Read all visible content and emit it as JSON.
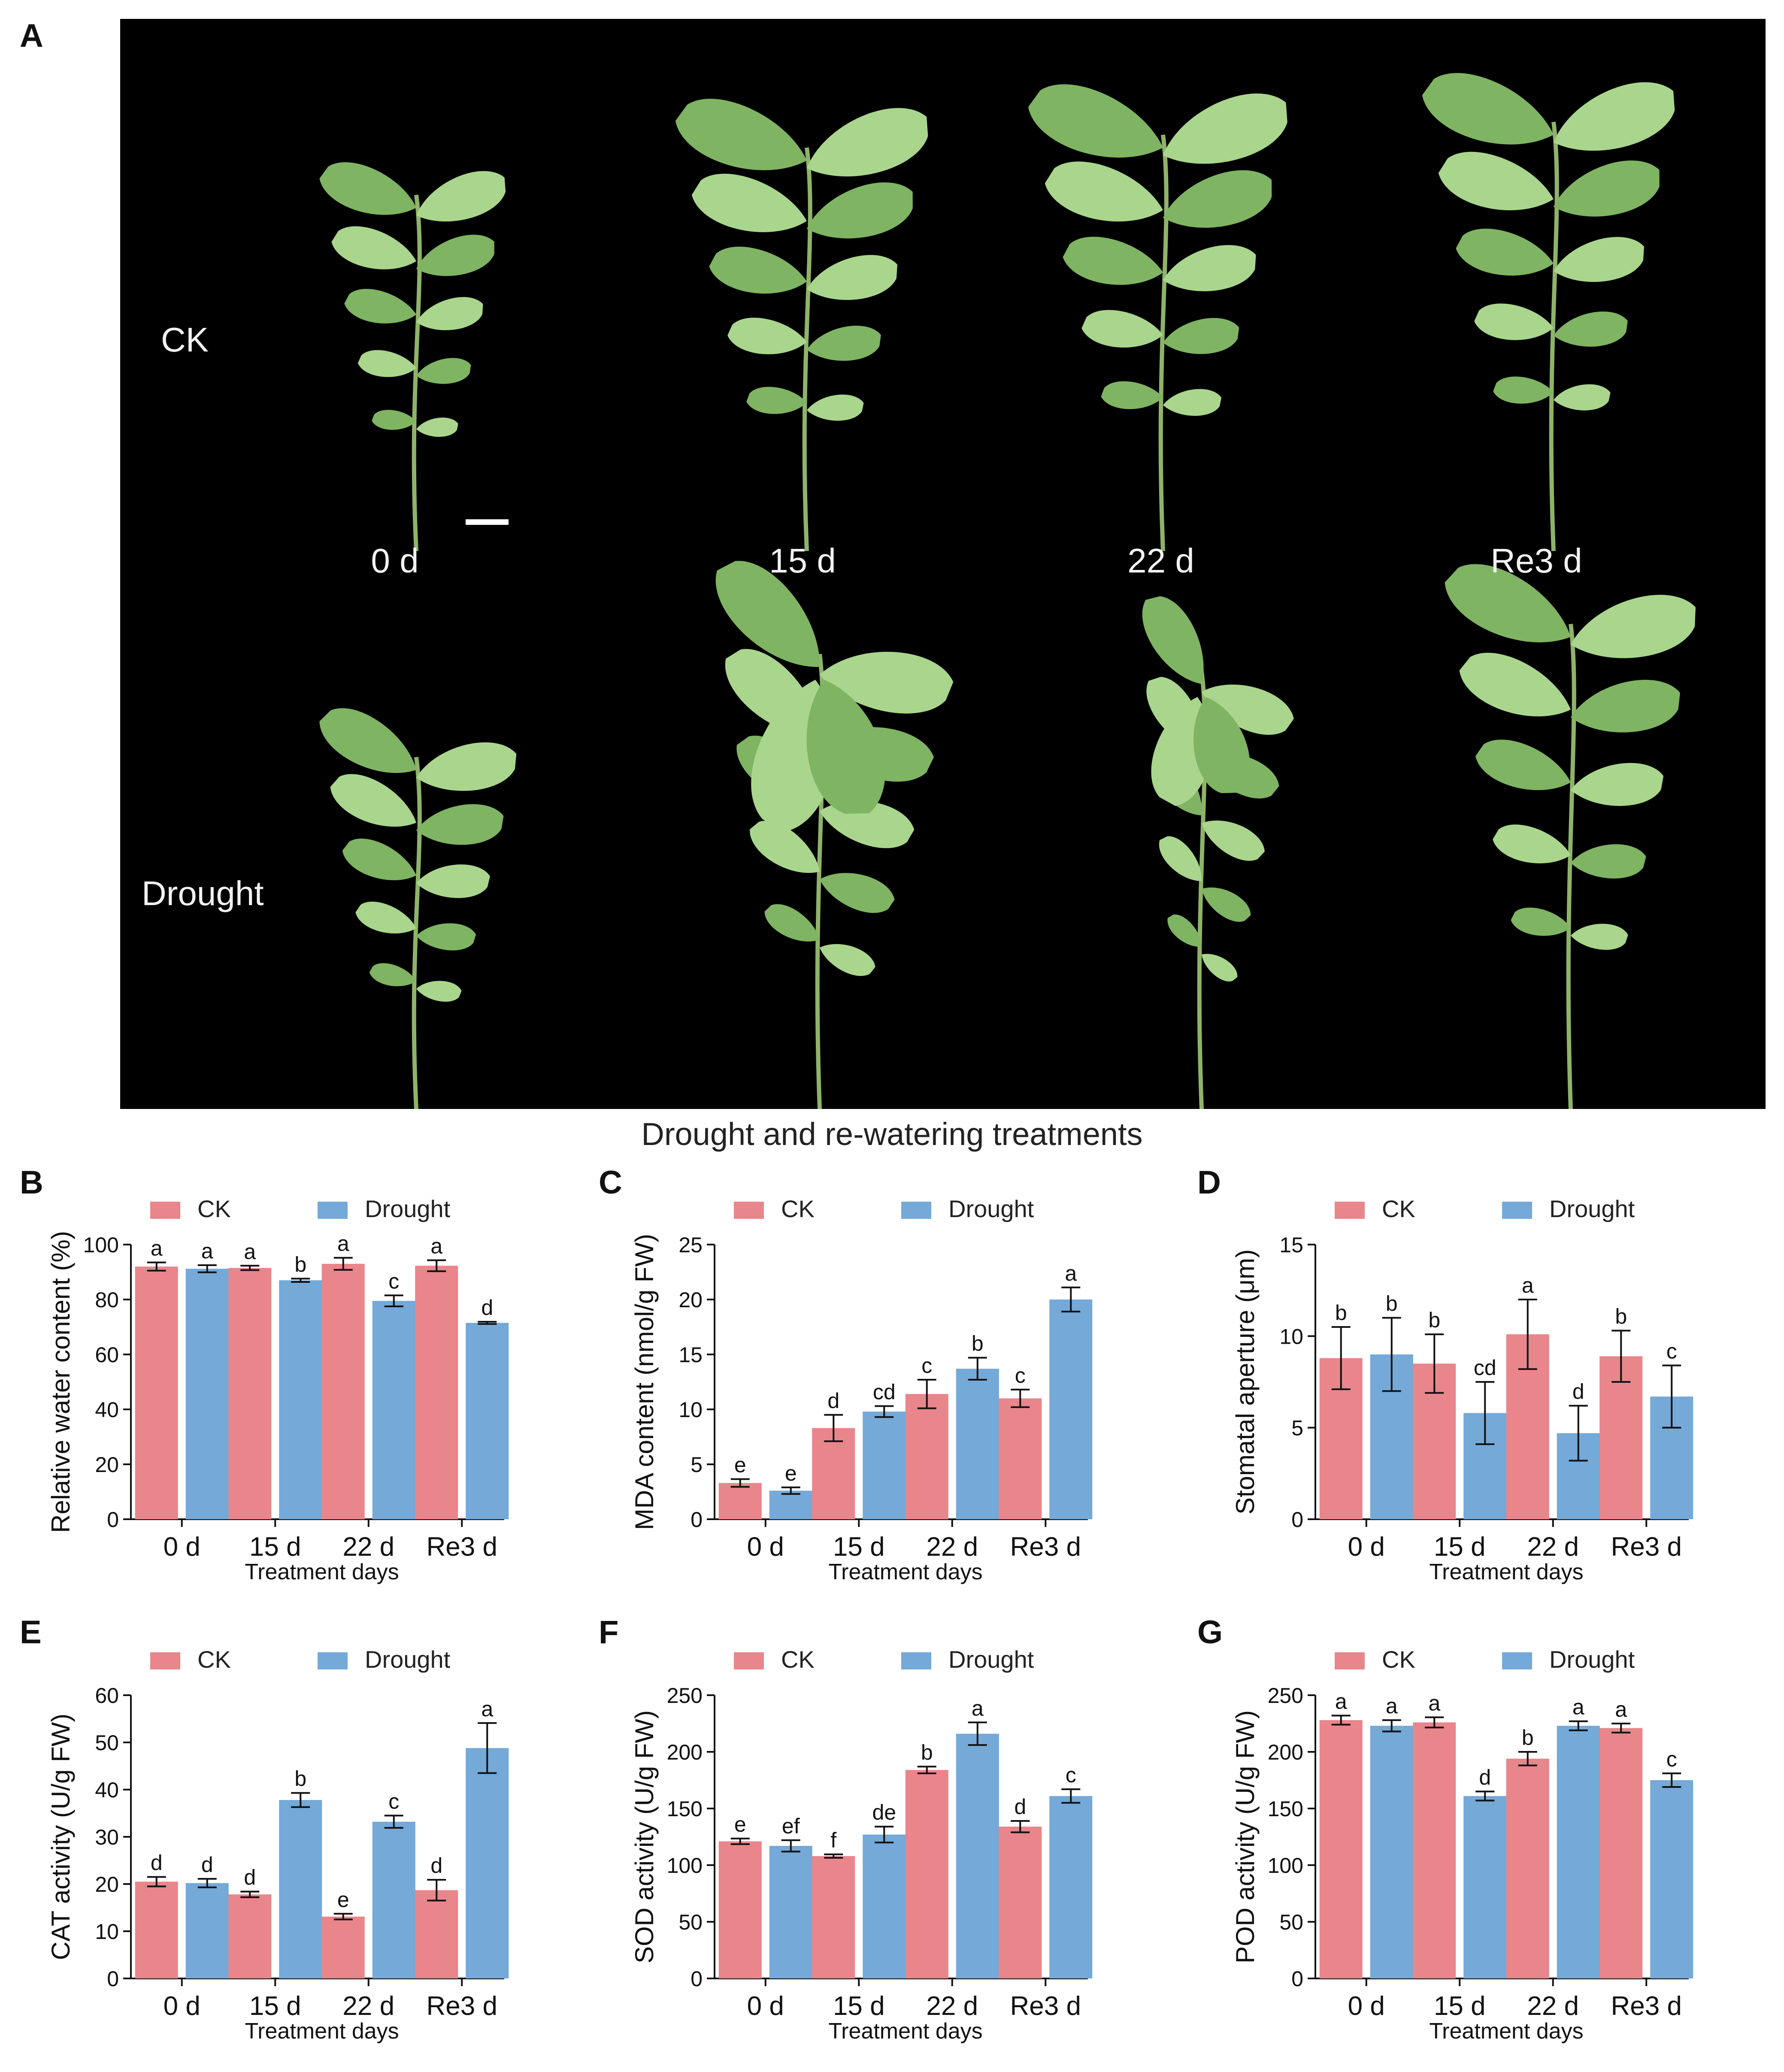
{
  "figure": {
    "panel_a": {
      "letter": "A",
      "row_labels": [
        "CK",
        "Drought"
      ],
      "column_labels": [
        "0 d",
        "15 d",
        "22 d",
        "Re3 d"
      ],
      "caption": "Drought and re-watering treatments",
      "colors": {
        "background": "#000000",
        "leaf": "#a9d68c",
        "leaf_dark": "#7fb462",
        "stem": "#8fb36a"
      }
    },
    "series_colors": {
      "CK": "#e8868b",
      "Drought": "#74a9d8"
    }
  },
  "chart_data": [
    {
      "id": "B",
      "type": "bar",
      "letter": "B",
      "categories": [
        "0 d",
        "15 d",
        "22 d",
        "Re3 d"
      ],
      "xlabel": "Treatment days",
      "ylabel": "Relative water content (%)",
      "ylim": [
        0,
        100
      ],
      "yticks": [
        0,
        20,
        40,
        60,
        80,
        100
      ],
      "legend": "top",
      "series": [
        {
          "name": "CK",
          "values": [
            92,
            91.5,
            93,
            92.3
          ],
          "errors": [
            1.5,
            0.8,
            2.2,
            2.0
          ],
          "letters": [
            "a",
            "a",
            "a",
            "a"
          ]
        },
        {
          "name": "Drought",
          "values": [
            91.2,
            87,
            79.5,
            71.5
          ],
          "errors": [
            1.3,
            0.6,
            2.0,
            0.4
          ],
          "letters": [
            "a",
            "b",
            "c",
            "d"
          ]
        }
      ]
    },
    {
      "id": "C",
      "type": "bar",
      "letter": "C",
      "categories": [
        "0 d",
        "15 d",
        "22 d",
        "Re3 d"
      ],
      "xlabel": "Treatment days",
      "ylabel": "MDA content (nmol/g FW)",
      "ylim": [
        0,
        25
      ],
      "yticks": [
        0,
        5,
        10,
        15,
        20,
        25
      ],
      "legend": "top",
      "series": [
        {
          "name": "CK",
          "values": [
            3.3,
            8.3,
            11.4,
            11.0
          ],
          "errors": [
            0.35,
            1.2,
            1.3,
            0.8
          ],
          "letters": [
            "e",
            "d",
            "c",
            "c"
          ]
        },
        {
          "name": "Drought",
          "values": [
            2.6,
            9.8,
            13.7,
            20.0
          ],
          "errors": [
            0.3,
            0.5,
            1.0,
            1.1
          ],
          "letters": [
            "e",
            "cd",
            "b",
            "a"
          ]
        }
      ]
    },
    {
      "id": "D",
      "type": "bar",
      "letter": "D",
      "categories": [
        "0 d",
        "15 d",
        "22 d",
        "Re3 d"
      ],
      "xlabel": "Treatment days",
      "ylabel": "Stomatal aperture (μm)",
      "ylim": [
        0,
        15
      ],
      "yticks": [
        0,
        5,
        10,
        15
      ],
      "legend": "top",
      "series": [
        {
          "name": "CK",
          "values": [
            8.8,
            8.5,
            10.1,
            8.9
          ],
          "errors": [
            1.7,
            1.6,
            1.9,
            1.4
          ],
          "letters": [
            "b",
            "b",
            "a",
            "b"
          ]
        },
        {
          "name": "Drought",
          "values": [
            9.0,
            5.8,
            4.7,
            6.7
          ],
          "errors": [
            2.0,
            1.7,
            1.5,
            1.7
          ],
          "letters": [
            "b",
            "cd",
            "d",
            "c"
          ]
        }
      ]
    },
    {
      "id": "E",
      "type": "bar",
      "letter": "E",
      "categories": [
        "0 d",
        "15 d",
        "22 d",
        "Re3 d"
      ],
      "xlabel": "Treatment days",
      "ylabel": "CAT activity (U/g FW)",
      "ylim": [
        0,
        60
      ],
      "yticks": [
        0,
        10,
        20,
        30,
        40,
        50,
        60
      ],
      "legend": "top",
      "series": [
        {
          "name": "CK",
          "values": [
            20.5,
            17.8,
            13.1,
            18.7
          ],
          "errors": [
            1.0,
            0.6,
            0.6,
            2.2
          ],
          "letters": [
            "d",
            "d",
            "e",
            "d"
          ]
        },
        {
          "name": "Drought",
          "values": [
            20.2,
            37.8,
            33.2,
            48.8
          ],
          "errors": [
            0.9,
            1.5,
            1.3,
            5.3
          ],
          "letters": [
            "d",
            "b",
            "c",
            "a"
          ]
        }
      ]
    },
    {
      "id": "F",
      "type": "bar",
      "letter": "F",
      "categories": [
        "0 d",
        "15 d",
        "22 d",
        "Re3 d"
      ],
      "xlabel": "Treatment days",
      "ylabel": "SOD activity (U/g FW)",
      "ylim": [
        0,
        250
      ],
      "yticks": [
        0,
        50,
        100,
        150,
        200,
        250
      ],
      "legend": "top",
      "series": [
        {
          "name": "CK",
          "values": [
            121,
            108,
            184,
            134
          ],
          "errors": [
            2.5,
            1.5,
            3.0,
            5.0
          ],
          "letters": [
            "e",
            "f",
            "b",
            "d"
          ]
        },
        {
          "name": "Drought",
          "values": [
            117,
            127,
            216,
            161
          ],
          "errors": [
            5.0,
            7.0,
            10.0,
            6.0
          ],
          "letters": [
            "ef",
            "de",
            "a",
            "c"
          ]
        }
      ]
    },
    {
      "id": "G",
      "type": "bar",
      "letter": "G",
      "categories": [
        "0 d",
        "15 d",
        "22 d",
        "Re3 d"
      ],
      "xlabel": "Treatment days",
      "ylabel": "POD activity (U/g FW)",
      "ylim": [
        0,
        250
      ],
      "yticks": [
        0,
        50,
        100,
        150,
        200,
        250
      ],
      "legend": "top",
      "series": [
        {
          "name": "CK",
          "values": [
            228,
            226,
            194,
            221
          ],
          "errors": [
            4.0,
            4.5,
            6.0,
            4.0
          ],
          "letters": [
            "a",
            "a",
            "b",
            "a"
          ]
        },
        {
          "name": "Drought",
          "values": [
            223,
            161,
            223,
            175
          ],
          "errors": [
            5.0,
            4.0,
            4.0,
            6.0
          ],
          "letters": [
            "a",
            "d",
            "a",
            "c"
          ]
        }
      ]
    }
  ]
}
